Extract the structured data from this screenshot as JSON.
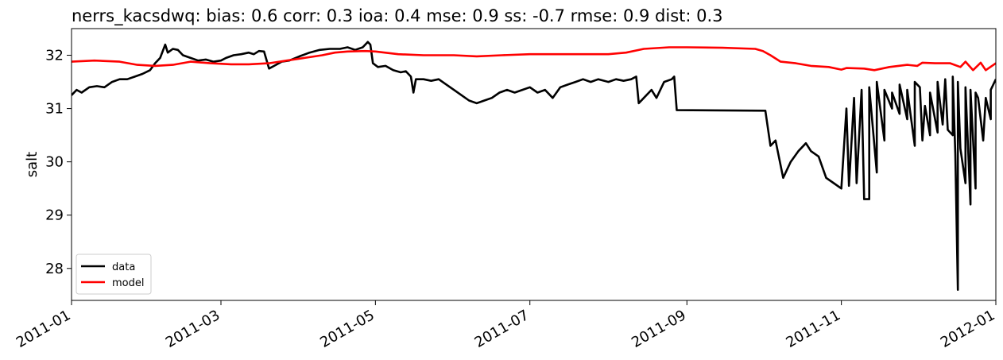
{
  "chart_data": {
    "type": "line",
    "title": "nerrs_kacsdwq: bias: 0.6  corr: 0.3  ioa: 0.4  mse: 0.9  ss: -0.7  rmse: 0.9  dist: 0.3",
    "xlabel": "",
    "ylabel": "salt",
    "xlim": [
      "2011-01-01",
      "2012-01-01"
    ],
    "ylim": [
      27.4,
      32.5
    ],
    "x_ticks": [
      "2011-01",
      "2011-03",
      "2011-05",
      "2011-07",
      "2011-09",
      "2011-11",
      "2012-01"
    ],
    "y_ticks": [
      28,
      29,
      30,
      31,
      32
    ],
    "grid": false,
    "legend_position": "lower-left",
    "series": [
      {
        "name": "data",
        "color": "#000000",
        "points": [
          [
            "2011-01-01",
            31.25
          ],
          [
            "2011-01-03",
            31.35
          ],
          [
            "2011-01-05",
            31.3
          ],
          [
            "2011-01-08",
            31.4
          ],
          [
            "2011-01-11",
            31.42
          ],
          [
            "2011-01-14",
            31.4
          ],
          [
            "2011-01-17",
            31.5
          ],
          [
            "2011-01-20",
            31.55
          ],
          [
            "2011-01-23",
            31.55
          ],
          [
            "2011-01-26",
            31.6
          ],
          [
            "2011-01-29",
            31.65
          ],
          [
            "2011-02-01",
            31.72
          ],
          [
            "2011-02-03",
            31.85
          ],
          [
            "2011-02-05",
            31.95
          ],
          [
            "2011-02-07",
            32.2
          ],
          [
            "2011-02-08",
            32.05
          ],
          [
            "2011-02-10",
            32.12
          ],
          [
            "2011-02-12",
            32.1
          ],
          [
            "2011-02-14",
            32.0
          ],
          [
            "2011-02-17",
            31.95
          ],
          [
            "2011-02-20",
            31.9
          ],
          [
            "2011-02-23",
            31.92
          ],
          [
            "2011-02-26",
            31.88
          ],
          [
            "2011-03-01",
            31.9
          ],
          [
            "2011-03-03",
            31.95
          ],
          [
            "2011-03-06",
            32.0
          ],
          [
            "2011-03-09",
            32.02
          ],
          [
            "2011-03-12",
            32.05
          ],
          [
            "2011-03-14",
            32.02
          ],
          [
            "2011-03-16",
            32.08
          ],
          [
            "2011-03-18",
            32.07
          ],
          [
            "2011-03-20",
            31.75
          ],
          [
            "2011-03-22",
            31.8
          ],
          [
            "2011-03-25",
            31.88
          ],
          [
            "2011-03-28",
            31.9
          ],
          [
            "2011-04-01",
            31.98
          ],
          [
            "2011-04-05",
            32.05
          ],
          [
            "2011-04-09",
            32.1
          ],
          [
            "2011-04-13",
            32.12
          ],
          [
            "2011-04-17",
            32.12
          ],
          [
            "2011-04-20",
            32.15
          ],
          [
            "2011-04-23",
            32.1
          ],
          [
            "2011-04-26",
            32.15
          ],
          [
            "2011-04-28",
            32.25
          ],
          [
            "2011-04-29",
            32.2
          ],
          [
            "2011-04-30",
            31.85
          ],
          [
            "2011-05-02",
            31.78
          ],
          [
            "2011-05-05",
            31.8
          ],
          [
            "2011-05-08",
            31.72
          ],
          [
            "2011-05-11",
            31.68
          ],
          [
            "2011-05-13",
            31.7
          ],
          [
            "2011-05-15",
            31.6
          ],
          [
            "2011-05-16",
            31.3
          ],
          [
            "2011-05-17",
            31.55
          ],
          [
            "2011-05-20",
            31.55
          ],
          [
            "2011-05-23",
            31.52
          ],
          [
            "2011-05-26",
            31.55
          ],
          [
            "2011-05-29",
            31.45
          ],
          [
            "2011-06-01",
            31.35
          ],
          [
            "2011-06-04",
            31.25
          ],
          [
            "2011-06-07",
            31.15
          ],
          [
            "2011-06-10",
            31.1
          ],
          [
            "2011-06-13",
            31.15
          ],
          [
            "2011-06-16",
            31.2
          ],
          [
            "2011-06-19",
            31.3
          ],
          [
            "2011-06-22",
            31.35
          ],
          [
            "2011-06-25",
            31.3
          ],
          [
            "2011-06-28",
            31.35
          ],
          [
            "2011-07-01",
            31.4
          ],
          [
            "2011-07-04",
            31.3
          ],
          [
            "2011-07-07",
            31.35
          ],
          [
            "2011-07-10",
            31.2
          ],
          [
            "2011-07-13",
            31.4
          ],
          [
            "2011-07-16",
            31.45
          ],
          [
            "2011-07-19",
            31.5
          ],
          [
            "2011-07-22",
            31.55
          ],
          [
            "2011-07-25",
            31.5
          ],
          [
            "2011-07-28",
            31.55
          ],
          [
            "2011-08-01",
            31.5
          ],
          [
            "2011-08-04",
            31.55
          ],
          [
            "2011-08-07",
            31.52
          ],
          [
            "2011-08-10",
            31.55
          ],
          [
            "2011-08-12",
            31.6
          ],
          [
            "2011-08-13",
            31.1
          ],
          [
            "2011-08-15",
            31.2
          ],
          [
            "2011-08-18",
            31.35
          ],
          [
            "2011-08-20",
            31.2
          ],
          [
            "2011-08-23",
            31.5
          ],
          [
            "2011-08-26",
            31.55
          ],
          [
            "2011-08-27",
            31.6
          ],
          [
            "2011-08-28",
            30.97
          ],
          [
            "2011-10-02",
            30.96
          ],
          [
            "2011-10-04",
            30.3
          ],
          [
            "2011-10-06",
            30.4
          ],
          [
            "2011-10-09",
            29.7
          ],
          [
            "2011-10-12",
            30.0
          ],
          [
            "2011-10-15",
            30.2
          ],
          [
            "2011-10-18",
            30.35
          ],
          [
            "2011-10-20",
            30.2
          ],
          [
            "2011-10-23",
            30.1
          ],
          [
            "2011-10-26",
            29.7
          ],
          [
            "2011-10-29",
            29.6
          ],
          [
            "2011-11-01",
            29.5
          ],
          [
            "2011-11-04",
            29.55
          ],
          [
            "2011-11-07",
            29.6
          ],
          [
            "2011-11-10",
            29.3
          ],
          [
            "2011-11-12",
            29.3
          ],
          [
            "2011-11-15",
            29.8
          ],
          [
            "2011-11-18",
            30.4
          ],
          [
            "2011-11-21",
            31.0
          ],
          [
            "2011-11-24",
            30.9
          ],
          [
            "2011-11-27",
            30.8
          ],
          [
            "2011-11-30",
            30.3
          ],
          [
            "2011-12-03",
            30.4
          ],
          [
            "2011-12-06",
            30.5
          ],
          [
            "2011-12-09",
            30.55
          ],
          [
            "2011-12-11",
            30.7
          ],
          [
            "2011-12-13",
            30.6
          ],
          [
            "2011-12-15",
            30.5
          ],
          [
            "2011-12-16",
            30.15
          ],
          [
            "2011-12-17",
            27.6
          ],
          [
            "2011-12-18",
            30.25
          ],
          [
            "2011-12-20",
            29.6
          ],
          [
            "2011-12-22",
            29.2
          ],
          [
            "2011-12-24",
            29.5
          ],
          [
            "2011-12-27",
            30.4
          ],
          [
            "2011-12-30",
            30.8
          ],
          [
            "2011-11-03",
            31.0
          ],
          [
            "2011-11-06",
            31.2
          ],
          [
            "2011-11-09",
            31.35
          ],
          [
            "2011-11-12",
            31.4
          ],
          [
            "2011-11-15",
            31.5
          ],
          [
            "2011-11-18",
            31.35
          ],
          [
            "2011-11-21",
            31.3
          ],
          [
            "2011-11-24",
            31.45
          ],
          [
            "2011-11-27",
            31.35
          ],
          [
            "2011-11-30",
            31.5
          ],
          [
            "2011-12-02",
            31.4
          ],
          [
            "2011-12-04",
            31.05
          ],
          [
            "2011-12-06",
            31.3
          ],
          [
            "2011-12-09",
            31.5
          ],
          [
            "2011-12-12",
            31.55
          ],
          [
            "2011-12-15",
            31.6
          ],
          [
            "2011-12-17",
            31.5
          ],
          [
            "2011-12-20",
            31.4
          ],
          [
            "2011-12-22",
            31.35
          ],
          [
            "2011-12-24",
            31.3
          ],
          [
            "2011-12-25",
            31.2
          ],
          [
            "2011-12-26",
            30.8
          ],
          [
            "2011-12-28",
            31.2
          ],
          [
            "2011-12-30",
            31.35
          ],
          [
            "2012-01-01",
            31.55
          ]
        ]
      },
      {
        "name": "model",
        "color": "#ff0000",
        "points": [
          [
            "2011-01-01",
            31.88
          ],
          [
            "2011-01-10",
            31.9
          ],
          [
            "2011-01-20",
            31.88
          ],
          [
            "2011-01-27",
            31.82
          ],
          [
            "2011-02-03",
            31.8
          ],
          [
            "2011-02-10",
            31.82
          ],
          [
            "2011-02-17",
            31.88
          ],
          [
            "2011-02-25",
            31.85
          ],
          [
            "2011-03-05",
            31.83
          ],
          [
            "2011-03-12",
            31.83
          ],
          [
            "2011-03-20",
            31.85
          ],
          [
            "2011-03-27",
            31.9
          ],
          [
            "2011-04-03",
            31.95
          ],
          [
            "2011-04-10",
            32.0
          ],
          [
            "2011-04-15",
            32.05
          ],
          [
            "2011-04-20",
            32.07
          ],
          [
            "2011-04-27",
            32.08
          ],
          [
            "2011-05-01",
            32.07
          ],
          [
            "2011-05-10",
            32.02
          ],
          [
            "2011-05-20",
            32.0
          ],
          [
            "2011-06-01",
            32.0
          ],
          [
            "2011-06-10",
            31.98
          ],
          [
            "2011-06-20",
            32.0
          ],
          [
            "2011-07-01",
            32.02
          ],
          [
            "2011-07-10",
            32.02
          ],
          [
            "2011-07-20",
            32.02
          ],
          [
            "2011-08-01",
            32.02
          ],
          [
            "2011-08-08",
            32.05
          ],
          [
            "2011-08-15",
            32.12
          ],
          [
            "2011-08-25",
            32.15
          ],
          [
            "2011-09-01",
            32.15
          ],
          [
            "2011-09-15",
            32.14
          ],
          [
            "2011-09-28",
            32.12
          ],
          [
            "2011-10-01",
            32.08
          ],
          [
            "2011-10-04",
            32.0
          ],
          [
            "2011-10-08",
            31.88
          ],
          [
            "2011-10-14",
            31.85
          ],
          [
            "2011-10-20",
            31.8
          ],
          [
            "2011-10-27",
            31.78
          ],
          [
            "2011-11-03",
            31.76
          ],
          [
            "2011-11-10",
            31.75
          ],
          [
            "2011-11-14",
            31.72
          ],
          [
            "2011-11-20",
            31.78
          ],
          [
            "2011-11-27",
            31.82
          ],
          [
            "2011-12-03",
            31.86
          ],
          [
            "2011-12-08",
            31.85
          ],
          [
            "2011-12-14",
            31.85
          ],
          [
            "2011-12-18",
            31.78
          ],
          [
            "2011-12-23",
            31.72
          ],
          [
            "2011-12-28",
            31.72
          ],
          [
            "2011-11-01",
            31.73
          ],
          [
            "2011-11-10",
            31.75
          ],
          [
            "2011-11-20",
            31.78
          ],
          [
            "2011-12-01",
            31.8
          ],
          [
            "2011-12-10",
            31.85
          ],
          [
            "2011-12-20",
            31.88
          ],
          [
            "2011-12-26",
            31.86
          ],
          [
            "2012-01-01",
            31.85
          ]
        ]
      }
    ]
  }
}
